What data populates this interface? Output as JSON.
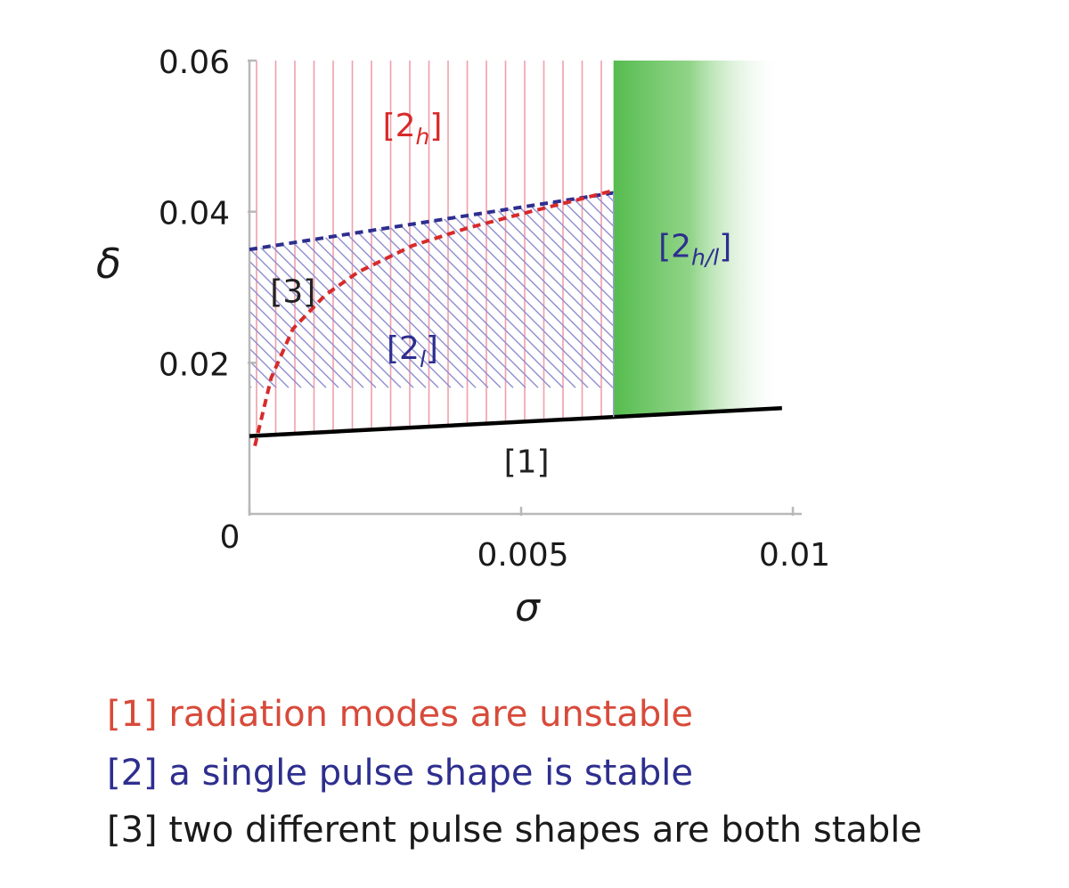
{
  "chart_data": {
    "type": "area",
    "title": "",
    "xlabel": "σ",
    "ylabel": "δ",
    "xlim": [
      0,
      0.01
    ],
    "ylim": [
      0,
      0.06
    ],
    "x_ticks": [
      {
        "value": 0,
        "label": "0"
      },
      {
        "value": 0.005,
        "label": "0.005"
      },
      {
        "value": 0.01,
        "label": "0.01"
      }
    ],
    "y_ticks": [
      {
        "value": 0.02,
        "label": "0.02"
      },
      {
        "value": 0.04,
        "label": "0.04"
      },
      {
        "value": 0.06,
        "label": "0.06"
      }
    ],
    "grid": false,
    "boundaries": {
      "radiation_boundary": {
        "color": "#000000",
        "style": "solid",
        "x": [
          0,
          0.0098
        ],
        "y": [
          0.0103,
          0.014
        ]
      },
      "upper_stability_boundary": {
        "color": "#2e2e8f",
        "style": "dashed",
        "x": [
          0,
          0.0067
        ],
        "y": [
          0.035,
          0.0425
        ]
      },
      "lower_stability_boundary": {
        "color": "#d82a2a",
        "style": "dashed",
        "x": [
          0.0001,
          0.0004,
          0.0008,
          0.0014,
          0.002,
          0.003,
          0.004,
          0.005,
          0.006,
          0.0067
        ],
        "y": [
          0.009,
          0.018,
          0.0245,
          0.029,
          0.032,
          0.0355,
          0.0378,
          0.0397,
          0.0415,
          0.0428
        ]
      },
      "sigma_critical": 0.0067
    },
    "regions": [
      {
        "label_main": "[2",
        "label_sub": "h",
        "label_end": "]",
        "color": "#d82a2a",
        "pattern": "vertical-hatch",
        "label_at": [
          0.003,
          0.05
        ]
      },
      {
        "label_main": "[2",
        "label_sub": "h/l",
        "label_end": "]",
        "color": "#2e2e8f",
        "fill": "#4cb845",
        "pattern": "solid-fade",
        "label_at": [
          0.0082,
          0.034
        ]
      },
      {
        "label_main": "[3]",
        "label_sub": "",
        "label_end": "",
        "color": "#222222",
        "pattern": "cross",
        "label_at": [
          0.0008,
          0.028
        ]
      },
      {
        "label_main": "[2",
        "label_sub": "l",
        "label_end": "]",
        "color": "#2e2e8f",
        "pattern": "diagonal-hatch",
        "label_at": [
          0.003,
          0.0205
        ]
      },
      {
        "label_main": "[1]",
        "label_sub": "",
        "label_end": "",
        "color": "#222222",
        "pattern": "none",
        "label_at": [
          0.0051,
          0.0055
        ]
      }
    ],
    "legend": [
      {
        "text": "[1] radiation modes are unstable",
        "color": "#d84a3a"
      },
      {
        "text": "[2] a single pulse shape is stable",
        "color": "#2e2e8f"
      },
      {
        "text": "[3] two different pulse shapes are both stable",
        "color": "#1a1a1a"
      }
    ],
    "legend_placement": "bottom"
  }
}
